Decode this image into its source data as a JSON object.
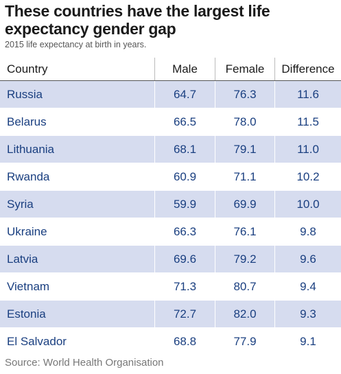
{
  "title": "These countries have the largest life expectancy gender gap",
  "subtitle": "2015 life expectancy at birth in years.",
  "source": "Source: World Health Organisation",
  "colors": {
    "row_shade": "#d6dcef",
    "value_text": "#1a3f80"
  },
  "chart_data": {
    "type": "table",
    "title": "These countries have the largest life expectancy gender gap",
    "subtitle": "2015 life expectancy at birth in years.",
    "columns": [
      "Country",
      "Male",
      "Female",
      "Difference"
    ],
    "rows": [
      [
        "Russia",
        "64.7",
        "76.3",
        "11.6"
      ],
      [
        "Belarus",
        "66.5",
        "78.0",
        "11.5"
      ],
      [
        "Lithuania",
        "68.1",
        "79.1",
        "11.0"
      ],
      [
        "Rwanda",
        "60.9",
        "71.1",
        "10.2"
      ],
      [
        "Syria",
        "59.9",
        "69.9",
        "10.0"
      ],
      [
        "Ukraine",
        "66.3",
        "76.1",
        "9.8"
      ],
      [
        "Latvia",
        "69.6",
        "79.2",
        "9.6"
      ],
      [
        "Vietnam",
        "71.3",
        "80.7",
        "9.4"
      ],
      [
        "Estonia",
        "72.7",
        "82.0",
        "9.3"
      ],
      [
        "El Salvador",
        "68.8",
        "77.9",
        "9.1"
      ]
    ]
  }
}
